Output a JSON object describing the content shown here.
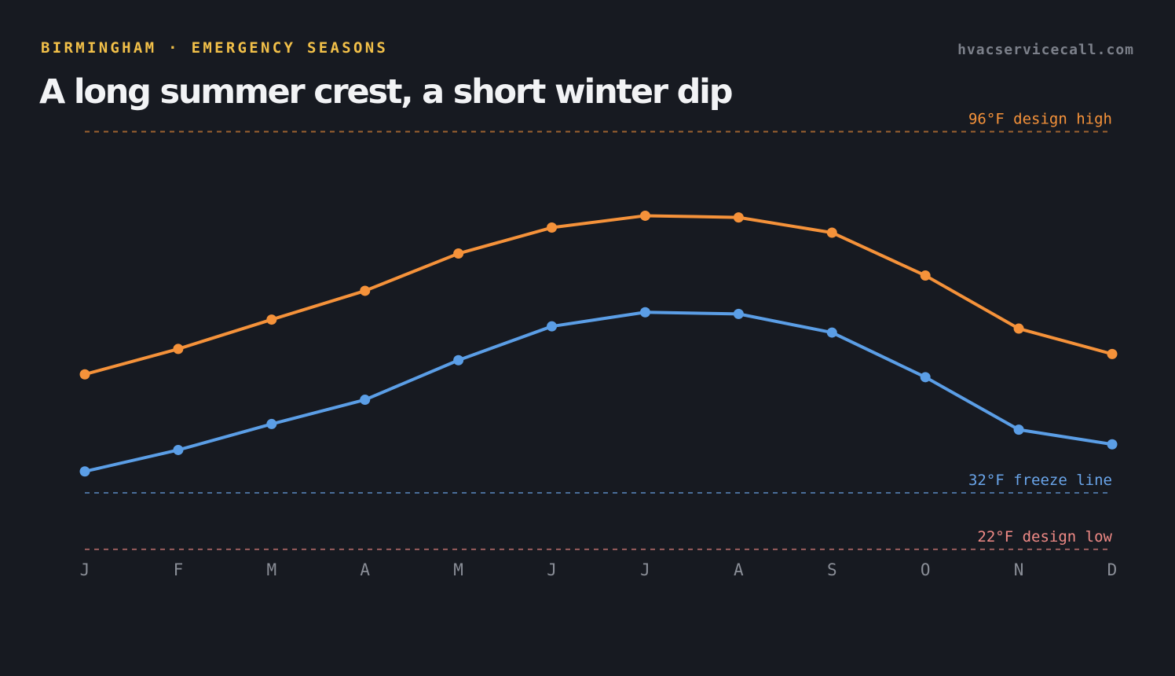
{
  "header": {
    "eyebrow": "BIRMINGHAM · EMERGENCY SEASONS",
    "site": "hvacservicecall.com",
    "title": "A long summer crest, a short winter dip"
  },
  "colors": {
    "background": "#171a21",
    "high_series": "#f5923a",
    "low_series": "#5b9ee6",
    "design_high": "#f5923a",
    "freeze_line": "#6aa5ea",
    "design_low": "#f08a86",
    "eyebrow": "#f2c049",
    "axis_text": "#8a8e97"
  },
  "chart_data": {
    "type": "line",
    "categories": [
      "J",
      "F",
      "M",
      "A",
      "M",
      "J",
      "J",
      "A",
      "S",
      "O",
      "N",
      "D"
    ],
    "ylim": [
      10,
      104
    ],
    "series": [
      {
        "key": "high",
        "color": "#f5923a",
        "values": [
          53.0,
          57.5,
          62.7,
          67.8,
          74.4,
          79.0,
          81.1,
          80.8,
          78.1,
          70.5,
          61.1,
          56.6
        ]
      },
      {
        "key": "low",
        "color": "#5b9ee6",
        "values": [
          35.8,
          39.6,
          44.2,
          48.5,
          55.5,
          61.5,
          64.0,
          63.7,
          60.4,
          52.5,
          43.2,
          40.6
        ]
      }
    ],
    "reference_lines": [
      {
        "key": "design_high",
        "value": 96,
        "label": "96°F design high",
        "color": "#f5923a"
      },
      {
        "key": "freeze_line",
        "value": 32,
        "label": "32°F freeze line",
        "color": "#6aa5ea"
      },
      {
        "key": "design_low",
        "value": 22,
        "label": "22°F design low",
        "color": "#f08a86"
      }
    ],
    "grid": false,
    "legend": "none"
  }
}
